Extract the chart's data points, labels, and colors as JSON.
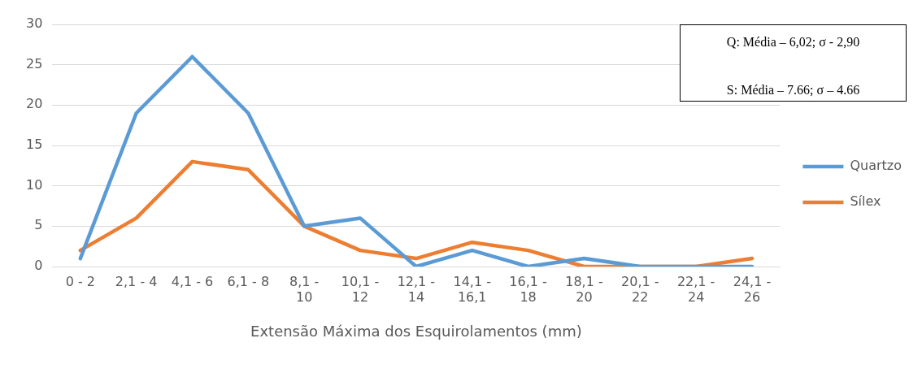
{
  "chart_data": {
    "type": "line",
    "xlabel": "Extensão Máxima dos Esquirolamentos (mm)",
    "categories": [
      "0 - 2",
      "2,1 - 4",
      "4,1 - 6",
      "6,1 - 8",
      "8,1 - 10",
      "10,1 - 12",
      "12,1 - 14",
      "14,1 - 16,1",
      "16,1 - 18",
      "18,1 - 20",
      "20,1 - 22",
      "22,1 - 24",
      "24,1 - 26"
    ],
    "series": [
      {
        "name": "Quartzo",
        "color": "#5b9bd5",
        "values": [
          1,
          19,
          26,
          19,
          5,
          6,
          0,
          2,
          0,
          1,
          0,
          0,
          0
        ]
      },
      {
        "name": "Sílex",
        "color": "#ed7d31",
        "values": [
          2,
          6,
          13,
          12,
          5,
          2,
          1,
          3,
          2,
          0,
          0,
          0,
          1
        ]
      }
    ],
    "ylim": [
      0,
      30
    ],
    "yticks": [
      0,
      5,
      10,
      15,
      20,
      25,
      30
    ],
    "grid": "y",
    "legend": "right",
    "marker": "none",
    "line_style": "solid",
    "annotations": [
      "Q: Média – 6,02; σ - 2,90",
      "S: Média – 7.66; σ – 4.66"
    ]
  }
}
